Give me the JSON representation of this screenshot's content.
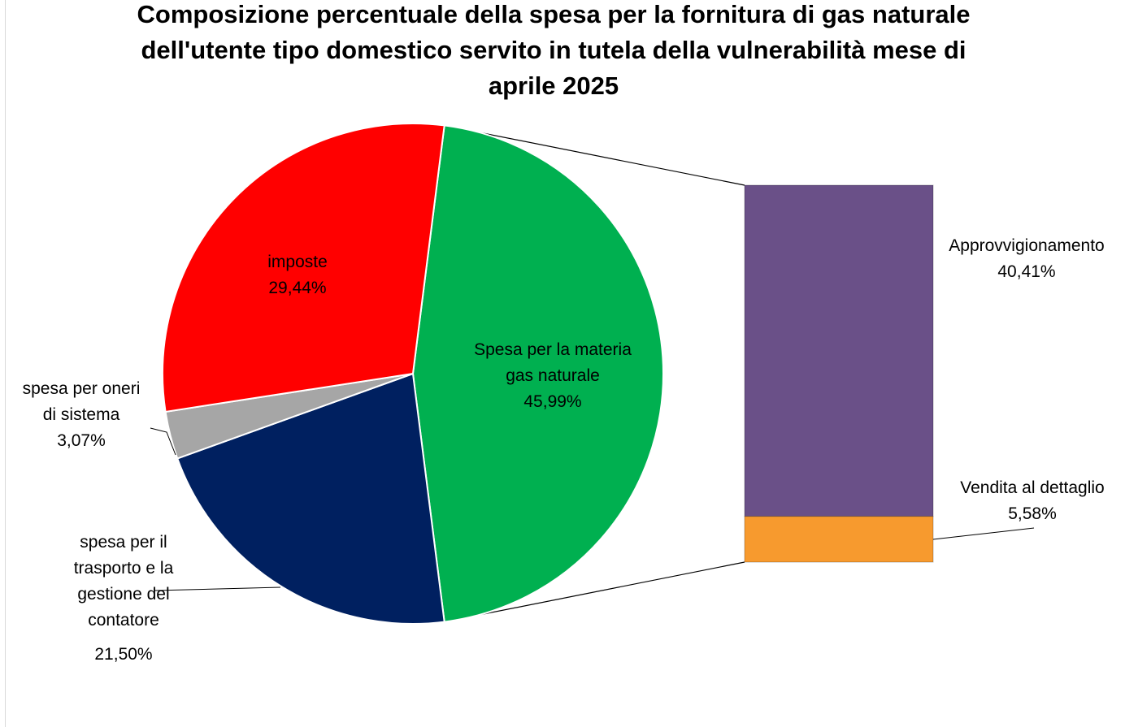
{
  "chart_data": {
    "type": "pie",
    "subtype": "bar-of-pie",
    "title_lines": [
      "Composizione percentuale della spesa per la fornitura di gas naturale",
      "dell'utente tipo domestico servito in tutela della vulnerabilità mese di",
      "aprile 2025"
    ],
    "slices": [
      {
        "label_lines": [
          "Spesa per la materia",
          "gas naturale"
        ],
        "value": 45.99,
        "value_label": "45,99%",
        "color": "#00b050"
      },
      {
        "label_lines": [
          "spesa per il",
          "trasporto e la",
          "gestione del",
          "contatore"
        ],
        "value": 21.5,
        "value_label": "21,50%",
        "color": "#002060"
      },
      {
        "label_lines": [
          "spesa per oneri",
          "di sistema"
        ],
        "value": 3.07,
        "value_label": "3,07%",
        "color": "#a6a6a6"
      },
      {
        "label_lines": [
          "imposte"
        ],
        "value": 29.44,
        "value_label": "29,44%",
        "color": "#ff0000"
      }
    ],
    "bar_breakdown": [
      {
        "label": "Approvvigionamento",
        "value": 40.41,
        "value_label": "40,41%",
        "color": "#6a5088"
      },
      {
        "label": "Vendita al dettaglio",
        "value": 5.58,
        "value_label": "5,58%",
        "color": "#f79a2e"
      }
    ],
    "legend": "none"
  }
}
